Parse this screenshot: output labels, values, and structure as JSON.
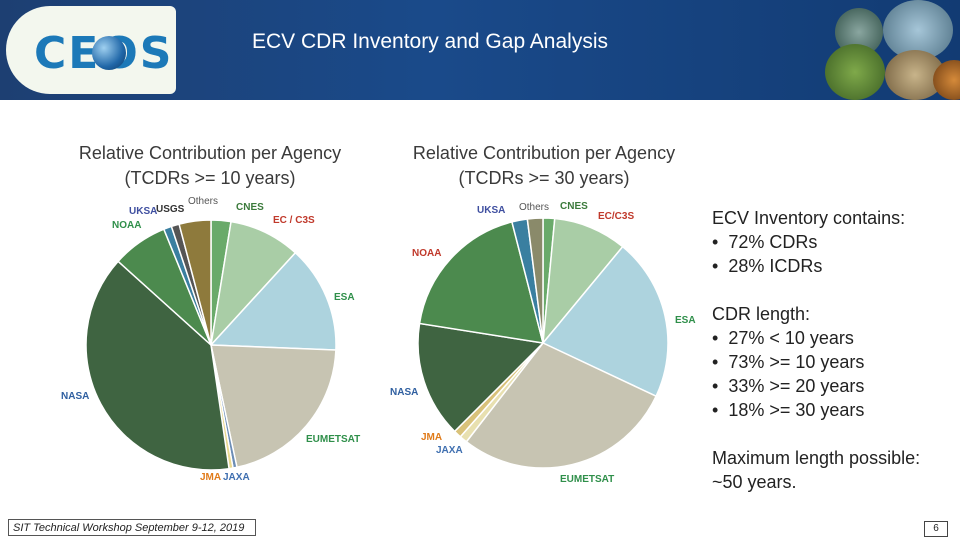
{
  "header": {
    "logo_text": "CEOS",
    "title": "ECV CDR Inventory and Gap Analysis"
  },
  "chart_data": [
    {
      "type": "pie",
      "title": "Relative Contribution per Agency (TCDRs >= 10 years)",
      "title_line1": "Relative Contribution per Agency",
      "title_line2": "(TCDRs >= 10 years)",
      "slices": [
        {
          "label": "CNES",
          "value": 2.5,
          "color": "#6aaa6a",
          "label_color": "#3b7a3b"
        },
        {
          "label": "EC / C3S",
          "value": 9.0,
          "color": "#a9cda6",
          "label_color": "#c0392b"
        },
        {
          "label": "ESA",
          "value": 13.5,
          "color": "#add3de",
          "label_color": "#2f8f4a"
        },
        {
          "label": "EUMETSAT",
          "value": 20.5,
          "color": "#c7c4b2",
          "label_color": "#2f8f4a"
        },
        {
          "label": "JAXA",
          "value": 0.5,
          "color": "#6c8db5",
          "label_color": "#3f6fb0"
        },
        {
          "label": "JMA",
          "value": 0.5,
          "color": "#e8d88f",
          "label_color": "#e07b1a"
        },
        {
          "label": "NASA",
          "value": 38.0,
          "color": "#3f6441",
          "label_color": "#2f5fa0"
        },
        {
          "label": "NOAA",
          "value": 7.0,
          "color": "#4c8a4e",
          "label_color": "#2f8f4a"
        },
        {
          "label": "UKSA",
          "value": 1.0,
          "color": "#3a7fa0",
          "label_color": "#3f4fa0"
        },
        {
          "label": "USGS",
          "value": 1.0,
          "color": "#555555",
          "label_color": "#333333"
        },
        {
          "label": "Others",
          "value": 4.0,
          "color": "#8e7a3c",
          "label_color": "#555555"
        }
      ]
    },
    {
      "type": "pie",
      "title": "Relative Contribution per Agency (TCDRs >= 30 years)",
      "title_line1": "Relative Contribution per Agency",
      "title_line2": "(TCDRs >= 30 years)",
      "slices": [
        {
          "label": "CNES",
          "value": 1.5,
          "color": "#6aaa6a",
          "label_color": "#3b7a3b"
        },
        {
          "label": "EC/C3S",
          "value": 9.5,
          "color": "#a9cda6",
          "label_color": "#c0392b"
        },
        {
          "label": "ESA",
          "value": 21.0,
          "color": "#add3de",
          "label_color": "#2f8f4a"
        },
        {
          "label": "EUMETSAT",
          "value": 28.5,
          "color": "#c7c4b2",
          "label_color": "#2f8f4a"
        },
        {
          "label": "JAXA",
          "value": 1.0,
          "color": "#e8e0b0",
          "label_color": "#3f6fb0"
        },
        {
          "label": "JMA",
          "value": 1.0,
          "color": "#d9c27a",
          "label_color": "#e07b1a"
        },
        {
          "label": "NASA",
          "value": 15.0,
          "color": "#3f6441",
          "label_color": "#2f5fa0"
        },
        {
          "label": "NOAA",
          "value": 18.5,
          "color": "#4c8a4e",
          "label_color": "#c0392b"
        },
        {
          "label": "UKSA",
          "value": 2.0,
          "color": "#3a7fa0",
          "label_color": "#3f4fa0"
        },
        {
          "label": "Others",
          "value": 2.0,
          "color": "#8a8a6a",
          "label_color": "#555555"
        }
      ]
    }
  ],
  "inventory": {
    "heading": "ECV Inventory contains:",
    "items": [
      "72% CDRs",
      "28% ICDRs"
    ]
  },
  "cdr_length": {
    "heading": "CDR length:",
    "items": [
      "27% < 10 years",
      "73% >= 10 years",
      "33% >= 20 years",
      "18% >= 30 years"
    ]
  },
  "max_length": {
    "line1": "Maximum length possible:",
    "line2": "~50 years."
  },
  "footer": {
    "event": "SIT Technical Workshop September 9-12, 2019",
    "page": "6"
  }
}
